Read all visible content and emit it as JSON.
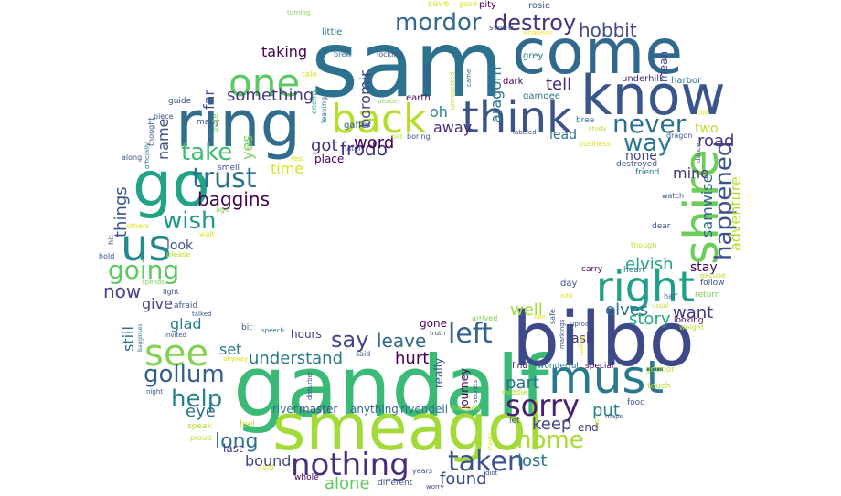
{
  "words": [
    {
      "text": "sam",
      "color": "#2c718e"
    },
    {
      "text": "come",
      "color": "#31688e"
    },
    {
      "text": "gandalf",
      "color": "#3aba76"
    },
    {
      "text": "bilbo",
      "color": "#3e4989"
    },
    {
      "text": "smeagol",
      "color": "#a2da37"
    },
    {
      "text": "ring",
      "color": "#2f6c8e"
    },
    {
      "text": "know",
      "color": "#39558c"
    },
    {
      "text": "go",
      "color": "#20a386"
    },
    {
      "text": "think",
      "color": "#3b528b"
    },
    {
      "text": "shire",
      "color": "#6ccd5a"
    },
    {
      "text": "back",
      "color": "#b5de2b"
    },
    {
      "text": "must",
      "color": "#2a788e"
    },
    {
      "text": "right",
      "color": "#1fa088"
    },
    {
      "text": "one",
      "color": "#5ec962"
    },
    {
      "text": "us",
      "color": "#23898e"
    },
    {
      "text": "see",
      "color": "#7fd34e"
    },
    {
      "text": "nothing",
      "color": "#472d7b"
    },
    {
      "text": "sorry",
      "color": "#481f70"
    },
    {
      "text": "taken",
      "color": "#3b528b"
    },
    {
      "text": "trust",
      "color": "#2c728e"
    },
    {
      "text": "left",
      "color": "#33638d"
    },
    {
      "text": "going",
      "color": "#5ec962"
    },
    {
      "text": "never",
      "color": "#2d708e"
    },
    {
      "text": "help",
      "color": "#26828e"
    },
    {
      "text": "gollum",
      "color": "#355f8d"
    },
    {
      "text": "home",
      "color": "#a8db34"
    },
    {
      "text": "mordor",
      "color": "#31688e"
    },
    {
      "text": "take",
      "color": "#3dbc74"
    },
    {
      "text": "way",
      "color": "#2a788e"
    },
    {
      "text": "wish",
      "color": "#1f988b"
    },
    {
      "text": "happened",
      "color": "#3b528b"
    },
    {
      "text": "destroy",
      "color": "#46337e"
    },
    {
      "text": "say",
      "color": "#404688"
    },
    {
      "text": "long",
      "color": "#2c728e"
    },
    {
      "text": "baggins",
      "color": "#440154"
    },
    {
      "text": "frodo",
      "color": "#46327e"
    },
    {
      "text": "hobbit",
      "color": "#3e4a89"
    },
    {
      "text": "now",
      "color": "#424086"
    },
    {
      "text": "leave",
      "color": "#31688e"
    },
    {
      "text": "understand",
      "color": "#2a788e"
    },
    {
      "text": "tell",
      "color": "#472c7a"
    },
    {
      "text": "put",
      "color": "#26828e"
    },
    {
      "text": "got",
      "color": "#46337e"
    },
    {
      "text": "something",
      "color": "#453882"
    },
    {
      "text": "keep",
      "color": "#404688"
    },
    {
      "text": "hurt",
      "color": "#440154"
    },
    {
      "text": "want",
      "color": "#46327e"
    },
    {
      "text": "found",
      "color": "#3e4a89"
    },
    {
      "text": "alone",
      "color": "#5ec962"
    },
    {
      "text": "elvish",
      "color": "#20a386"
    },
    {
      "text": "eye",
      "color": "#2c728e"
    },
    {
      "text": "lost",
      "color": "#2a788e"
    },
    {
      "text": "part",
      "color": "#2d708e"
    },
    {
      "text": "road",
      "color": "#46327e"
    },
    {
      "text": "well",
      "color": "#a2da37"
    },
    {
      "text": "elves",
      "color": "#2c728e"
    },
    {
      "text": "story",
      "color": "#22a884"
    },
    {
      "text": "word",
      "color": "#440154"
    },
    {
      "text": "things",
      "color": "#3b528b"
    },
    {
      "text": "bound",
      "color": "#414487"
    },
    {
      "text": "oh",
      "color": "#26828e"
    },
    {
      "text": "away",
      "color": "#472d7b"
    },
    {
      "text": "taking",
      "color": "#440154"
    },
    {
      "text": "mine",
      "color": "#46337e"
    },
    {
      "text": "aragorn",
      "color": "#2a788e"
    },
    {
      "text": "boromir",
      "color": "#414487"
    },
    {
      "text": "samwise",
      "color": "#31688e"
    },
    {
      "text": "adventure",
      "color": "#b5de2b"
    },
    {
      "text": "give",
      "color": "#414487"
    },
    {
      "text": "still",
      "color": "#2c728e"
    },
    {
      "text": "name",
      "color": "#3b528b"
    },
    {
      "text": "far",
      "color": "#3b528b"
    },
    {
      "text": "time",
      "color": "#dde318"
    },
    {
      "text": "yes",
      "color": "#7ad151"
    },
    {
      "text": "glad",
      "color": "#26828e"
    },
    {
      "text": "set",
      "color": "#2a788e"
    },
    {
      "text": "look",
      "color": "#3b528b"
    },
    {
      "text": "lead",
      "color": "#2c728e"
    },
    {
      "text": "two",
      "color": "#b5de2b"
    },
    {
      "text": "none",
      "color": "#3e4a89"
    },
    {
      "text": "stay",
      "color": "#440154"
    },
    {
      "text": "ask",
      "color": "#46337e"
    },
    {
      "text": "end",
      "color": "#453882"
    },
    {
      "text": "last",
      "color": "#46327e"
    },
    {
      "text": "hours",
      "color": "#453882"
    },
    {
      "text": "river",
      "color": "#2c728e"
    },
    {
      "text": "master",
      "color": "#3b528b"
    },
    {
      "text": "anything",
      "color": "#31688e"
    },
    {
      "text": "rivendell",
      "color": "#2c728e"
    },
    {
      "text": "journey",
      "color": "#440154"
    },
    {
      "text": "really",
      "color": "#3b528b"
    },
    {
      "text": "gone",
      "color": "#440154"
    },
    {
      "text": "place",
      "color": "#440154"
    },
    {
      "text": "gaffer",
      "color": "#3b528b"
    },
    {
      "text": "earth",
      "color": "#440154"
    },
    {
      "text": "grey",
      "color": "#2a788e"
    },
    {
      "text": "gamgee",
      "color": "#2c728e"
    },
    {
      "text": "underhill",
      "color": "#46327e"
    },
    {
      "text": "harbor",
      "color": "#2a788e"
    },
    {
      "text": "mean",
      "color": "#3e4989"
    },
    {
      "text": "dark",
      "color": "#440154"
    },
    {
      "text": "little",
      "color": "#2a788e"
    },
    {
      "text": "swore",
      "color": "#3b528b"
    },
    {
      "text": "save",
      "color": "#dde318"
    },
    {
      "text": "good",
      "color": "#dde318"
    },
    {
      "text": "pity",
      "color": "#440154"
    },
    {
      "text": "rosie",
      "color": "#3b528b"
    },
    {
      "text": "whatever",
      "color": "#fde725"
    },
    {
      "text": "turning",
      "color": "#7ad151"
    },
    {
      "text": "tale",
      "color": "#dde318"
    },
    {
      "text": "brew",
      "color": "#2a788e"
    },
    {
      "text": "locking",
      "color": "#3b528b"
    },
    {
      "text": "without",
      "color": "#3b528b"
    },
    {
      "text": "unexpected",
      "color": "#b5de2b"
    },
    {
      "text": "came",
      "color": "#2c728e"
    },
    {
      "text": "guide",
      "color": "#3b528b"
    },
    {
      "text": "piece",
      "color": "#3b528b"
    },
    {
      "text": "many",
      "color": "#3b528b"
    },
    {
      "text": "quite",
      "color": "#7ad151"
    },
    {
      "text": "enemy",
      "color": "#22a884"
    },
    {
      "text": "leaving",
      "color": "#2a788e"
    },
    {
      "text": "peace",
      "color": "#7ad151"
    },
    {
      "text": "lately",
      "color": "#3b528b"
    },
    {
      "text": "old",
      "color": "#b5de2b"
    },
    {
      "text": "boring",
      "color": "#3b528b"
    },
    {
      "text": "thought",
      "color": "#3b528b"
    },
    {
      "text": "officially",
      "color": "#2a788e"
    },
    {
      "text": "smell",
      "color": "#3b528b"
    },
    {
      "text": "rest",
      "color": "#dde318"
    },
    {
      "text": "along",
      "color": "#3b528b"
    },
    {
      "text": "ago",
      "color": "#7ad151"
    },
    {
      "text": "others",
      "color": "#dde318"
    },
    {
      "text": "wait",
      "color": "#dde318"
    },
    {
      "text": "hit",
      "color": "#3b528b"
    },
    {
      "text": "hold",
      "color": "#3b528b"
    },
    {
      "text": "please",
      "color": "#b5de2b"
    },
    {
      "text": "spends",
      "color": "#7ad151"
    },
    {
      "text": "light",
      "color": "#3b528b"
    },
    {
      "text": "afraid",
      "color": "#3b528b"
    },
    {
      "text": "talked",
      "color": "#3b528b"
    },
    {
      "text": "invited",
      "color": "#3b528b"
    },
    {
      "text": "bagginses",
      "color": "#2a788e"
    },
    {
      "text": "bit",
      "color": "#3b528b"
    },
    {
      "text": "speech",
      "color": "#2a788e"
    },
    {
      "text": "anyway",
      "color": "#dde318"
    },
    {
      "text": "disturber",
      "color": "#3b528b"
    },
    {
      "text": "said",
      "color": "#3b528b"
    },
    {
      "text": "night",
      "color": "#3b528b"
    },
    {
      "text": "speak",
      "color": "#b5de2b"
    },
    {
      "text": "proud",
      "color": "#b5de2b"
    },
    {
      "text": "feel",
      "color": "#b5de2b"
    },
    {
      "text": "told",
      "color": "#dde318"
    },
    {
      "text": "whole",
      "color": "#440154"
    },
    {
      "text": "different",
      "color": "#3b528b"
    },
    {
      "text": "years",
      "color": "#3b528b"
    },
    {
      "text": "worry",
      "color": "#3b528b"
    },
    {
      "text": "idiot",
      "color": "#3b528b"
    },
    {
      "text": "cheers",
      "color": "#dde318"
    },
    {
      "text": "let",
      "color": "#3b528b"
    },
    {
      "text": "happen",
      "color": "#b5de2b"
    },
    {
      "text": "arrived",
      "color": "#7ad151"
    },
    {
      "text": "secrets",
      "color": "#3b528b"
    },
    {
      "text": "middle",
      "color": "#b5de2b"
    },
    {
      "text": "truth",
      "color": "#3b528b"
    },
    {
      "text": "safe",
      "color": "#3b528b"
    },
    {
      "text": "late",
      "color": "#dde318"
    },
    {
      "text": "markings",
      "color": "#3b528b"
    },
    {
      "text": "calling",
      "color": "#dde318"
    },
    {
      "text": "uproar",
      "color": "#3b528b"
    },
    {
      "text": "odd",
      "color": "#dde318"
    },
    {
      "text": "find",
      "color": "#440154"
    },
    {
      "text": "wonderful",
      "color": "#2a788e"
    },
    {
      "text": "special",
      "color": "#440154"
    },
    {
      "text": "maps",
      "color": "#3b528b"
    },
    {
      "text": "touch",
      "color": "#b5de2b"
    },
    {
      "text": "food",
      "color": "#3b528b"
    },
    {
      "text": "gondor",
      "color": "#b5de2b"
    },
    {
      "text": "looking",
      "color": "#440154"
    },
    {
      "text": "weight",
      "color": "#b5de2b"
    },
    {
      "text": "usual",
      "color": "#b5de2b"
    },
    {
      "text": "return",
      "color": "#7ad151"
    },
    {
      "text": "follow",
      "color": "#3b528b"
    },
    {
      "text": "excuse",
      "color": "#b5de2b"
    },
    {
      "text": "half",
      "color": "#3b528b"
    },
    {
      "text": "heart",
      "color": "#2a788e"
    },
    {
      "text": "carry",
      "color": "#440154"
    },
    {
      "text": "day",
      "color": "#3b528b"
    },
    {
      "text": "though",
      "color": "#b5de2b"
    },
    {
      "text": "dear",
      "color": "#3b528b"
    },
    {
      "text": "watch",
      "color": "#3b528b"
    },
    {
      "text": "friend",
      "color": "#2a788e"
    },
    {
      "text": "destroyed",
      "color": "#3b528b"
    },
    {
      "text": "dance",
      "color": "#3b528b"
    },
    {
      "text": "dragon",
      "color": "#3b528b"
    },
    {
      "text": "life",
      "color": "#dde318"
    },
    {
      "text": "business",
      "color": "#dde318"
    },
    {
      "text": "study",
      "color": "#b5de2b"
    },
    {
      "text": "bree",
      "color": "#2a788e"
    },
    {
      "text": "labeled",
      "color": "#3b528b"
    },
    {
      "text": "cut",
      "color": "#b5de2b"
    }
  ]
}
